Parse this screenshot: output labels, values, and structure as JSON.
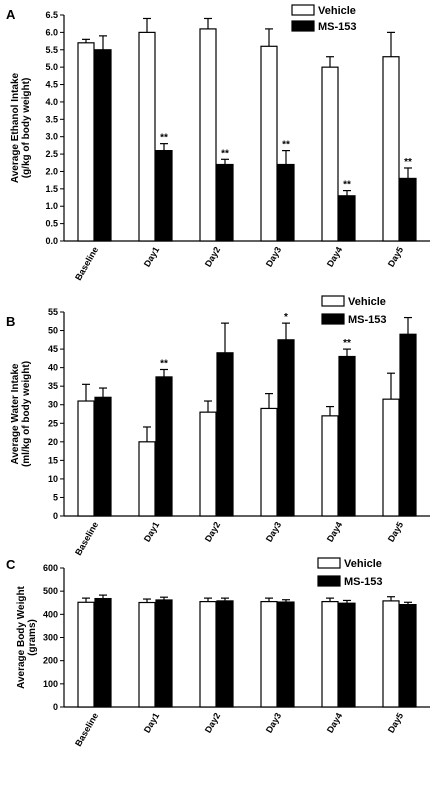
{
  "chart_data": [
    {
      "type": "bar",
      "panel": "A",
      "ylabel": [
        "Average Ethanol Intake",
        "(g/kg of body weight)"
      ],
      "categories": [
        "Baseline",
        "Day1",
        "Day2",
        "Day3",
        "Day4",
        "Day5"
      ],
      "ylim": [
        0,
        6.5
      ],
      "yticks": [
        "0.0",
        "0.5",
        "1.0",
        "1.5",
        "2.0",
        "2.5",
        "3.0",
        "3.5",
        "4.0",
        "4.5",
        "5.0",
        "5.5",
        "6.0",
        "6.5"
      ],
      "series": [
        {
          "name": "Vehicle",
          "fill": "#ffffff",
          "values": [
            5.7,
            6.0,
            6.1,
            5.6,
            5.0,
            5.3
          ],
          "errors": [
            0.1,
            0.4,
            0.3,
            0.5,
            0.3,
            0.7
          ],
          "sig": [
            "",
            "",
            "",
            "",
            "",
            ""
          ]
        },
        {
          "name": "MS-153",
          "fill": "#000000",
          "values": [
            5.5,
            2.6,
            2.2,
            2.2,
            1.3,
            1.8
          ],
          "errors": [
            0.4,
            0.2,
            0.15,
            0.4,
            0.15,
            0.3
          ],
          "sig": [
            "",
            "**",
            "**",
            "**",
            "**",
            "**"
          ]
        }
      ]
    },
    {
      "type": "bar",
      "panel": "B",
      "ylabel": [
        "Average Water Intake",
        "(ml/kg of body weight)"
      ],
      "categories": [
        "Baseline",
        "Day1",
        "Day2",
        "Day3",
        "Day4",
        "Day5"
      ],
      "ylim": [
        0,
        55
      ],
      "yticks": [
        "0",
        "5",
        "10",
        "15",
        "20",
        "25",
        "30",
        "35",
        "40",
        "45",
        "50",
        "55"
      ],
      "series": [
        {
          "name": "Vehicle",
          "fill": "#ffffff",
          "values": [
            31,
            20,
            28,
            29,
            27,
            31.5
          ],
          "errors": [
            4.5,
            4,
            3,
            4,
            2.5,
            7
          ],
          "sig": [
            "",
            "",
            "",
            "",
            "",
            ""
          ]
        },
        {
          "name": "MS-153",
          "fill": "#000000",
          "values": [
            32,
            37.5,
            44,
            47.5,
            43,
            49
          ],
          "errors": [
            2.5,
            2,
            8,
            4.5,
            2,
            4.5
          ],
          "sig": [
            "",
            "**",
            "",
            "*",
            "**",
            ""
          ]
        }
      ]
    },
    {
      "type": "bar",
      "panel": "C",
      "ylabel": [
        "Average Body Weight",
        "(grams)"
      ],
      "categories": [
        "Baseline",
        "Day1",
        "Day2",
        "Day3",
        "Day4",
        "Day5"
      ],
      "ylim": [
        0,
        600
      ],
      "yticks": [
        "0",
        "100",
        "200",
        "300",
        "400",
        "500",
        "600"
      ],
      "series": [
        {
          "name": "Vehicle",
          "fill": "#ffffff",
          "values": [
            452,
            451,
            455,
            455,
            455,
            458
          ],
          "errors": [
            18,
            15,
            15,
            15,
            15,
            18
          ],
          "sig": [
            "",
            "",
            "",
            "",
            "",
            ""
          ]
        },
        {
          "name": "MS-153",
          "fill": "#000000",
          "values": [
            468,
            462,
            458,
            453,
            448,
            442
          ],
          "errors": [
            15,
            12,
            12,
            10,
            12,
            10
          ],
          "sig": [
            "",
            "",
            "",
            "",
            "",
            ""
          ]
        }
      ]
    }
  ]
}
